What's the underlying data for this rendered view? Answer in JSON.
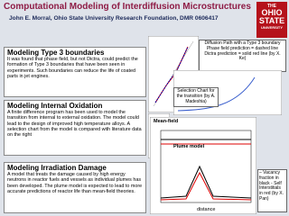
{
  "header": {
    "title": "Computational Modeling of Interdiffusion Microstructures",
    "subtitle": "John E. Morral, Ohio State University Research Foundation, DMR 0606417",
    "logo": [
      "THE",
      "OHIO",
      "STATE",
      "UNIVERSITY"
    ]
  },
  "sections": [
    {
      "heading": "Modeling Type 3 boundaries",
      "body": "It was found that phase field, but not Dictra, could predict the formation of Type 3 boundaries that have been seen in experiments. Such boundaries can reduce the life of coated parts in jet engines."
    },
    {
      "heading": "Modeling Internal Oxidation",
      "body": "A finite difference program has been used to model the transition from internal to external oxidation. The model could lead to the design of improved high temperature alloys.  A selection chart from the model is compared with literature data on the right"
    },
    {
      "heading": "Modeling Irradiation Damage",
      "body": "A model that treats the damage caused by high energy neutrons in reactor fuels and vessels as individual plumes has been developed. The plume model is expected to lead to more accurate predictions of reactor life than mean-field theories."
    }
  ],
  "callouts": [
    "Diffusion Path with a Type 3 boundary Phase field prediction = dashed line Dictra prediction = solid red line (by X. Ke)",
    "Selection Chart for the transition (by A. Madeshia)",
    "– Vacancy fraction in black - Self Interstitials in red (by X. Pan)"
  ],
  "plot_labels": {
    "mean_field": "Mean-field",
    "plume": "Plume model",
    "x_axis": "distance"
  }
}
